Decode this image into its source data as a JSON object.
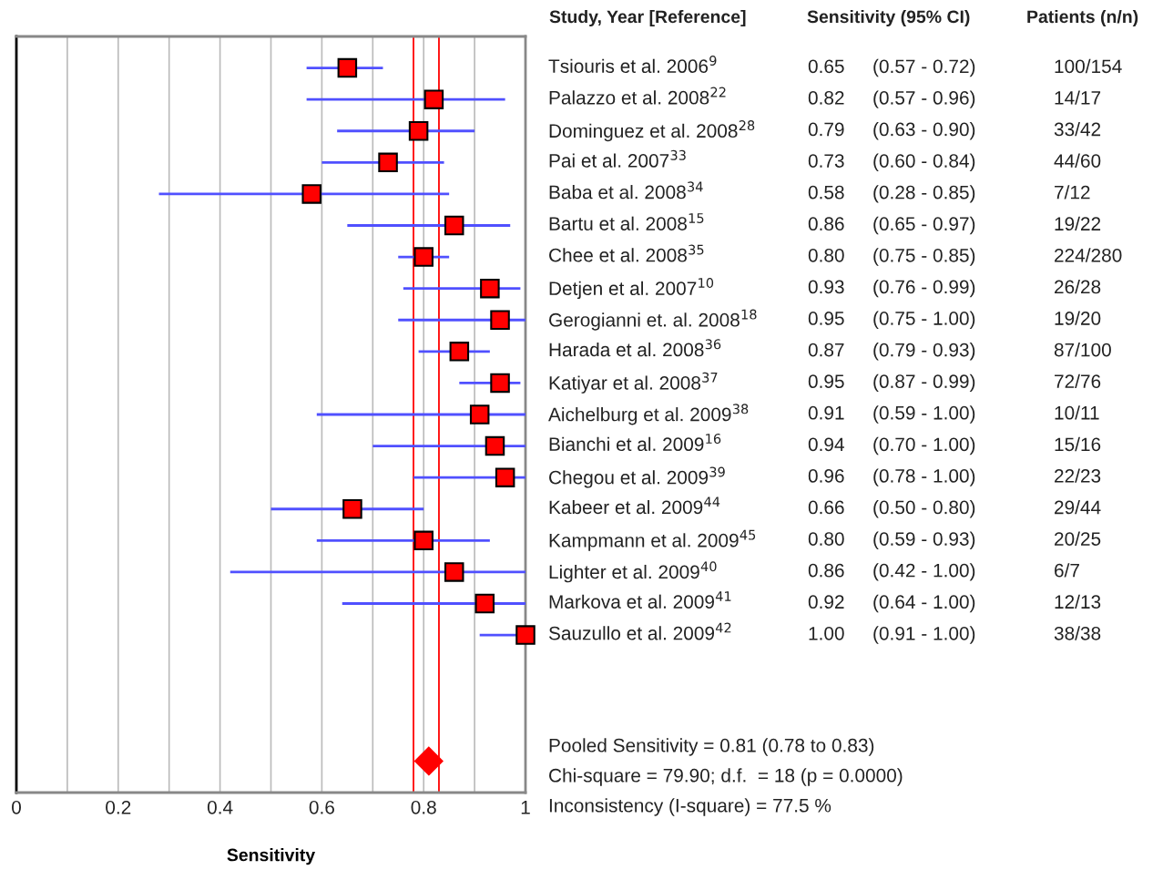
{
  "chart_data": {
    "type": "scatter",
    "orientation": "horizontal",
    "xlabel": "Sensitivity",
    "categories": [
      "Tsiouris et al. 2006$^{9}$",
      "Palazzo et al. 2008$^{22}$",
      "Dominguez et al. 2008$^{28}$",
      "Pai et al. 2007$^{33}$",
      "Baba et al. 2008$^{34}$",
      "Bartu et al. 2008$^{15}$",
      "Chee et al. 2008$^{35}$",
      "Detjen et al. 2007$^{10}$",
      "Gerogianni et. al. 2008$^{18}$",
      "Harada et al. 2008$^{36}$",
      "Katiyar et al. 2008$^{37}$",
      "Aichelburg et al. 2009$^{38}$",
      "Bianchi et al. 2009$^{16}$",
      "Chegou et al. 2009$^{39}$",
      "Kabeer et al. 2009$^{44}$",
      "Kampmann et al. 2009$^{45}$",
      "Lighter et al. 2009$^{40}$",
      "Markova et al. 2009$^{41}$",
      "Sauzullo et al. 2009$^{42}$",
      null,
      null,
      null,
      null
    ],
    "series": [
      {
        "color": "#ff0000",
        "marker": "square",
        "values": [
          0.65,
          0.82,
          0.79,
          0.73,
          0.58,
          0.86,
          0.8,
          0.93,
          0.95,
          0.87,
          0.95,
          0.91,
          0.94,
          0.96,
          0.66,
          0.8,
          0.86,
          0.92,
          1.0,
          null,
          null,
          null,
          null
        ],
        "errors": [
          [
            0.57,
            0.72
          ],
          [
            0.57,
            0.96
          ],
          [
            0.63,
            0.9
          ],
          [
            0.6,
            0.84
          ],
          [
            0.28,
            0.85
          ],
          [
            0.65,
            0.97
          ],
          [
            0.75,
            0.85
          ],
          [
            0.76,
            0.99
          ],
          [
            0.75,
            1.0
          ],
          [
            0.79,
            0.93
          ],
          [
            0.87,
            0.99
          ],
          [
            0.59,
            1.0
          ],
          [
            0.7,
            1.0
          ],
          [
            0.78,
            1.0
          ],
          [
            0.5,
            0.8
          ],
          [
            0.59,
            0.93
          ],
          [
            0.42,
            1.0
          ],
          [
            0.64,
            1.0
          ],
          [
            0.91,
            1.0
          ],
          null,
          null,
          null,
          null
        ],
        "value_labels": [
          "0.65 (0.57 - 0.72)",
          "0.82 (0.57 - 0.96)",
          "0.79 (0.63 - 0.90)",
          "0.73 (0.60 - 0.84)",
          "0.58 (0.28 - 0.85)",
          "0.86 (0.65 - 0.97)",
          "0.80 (0.75 - 0.85)",
          "0.93 (0.76 - 0.99)",
          "0.95 (0.75 - 1.00)",
          "0.87 (0.79 - 0.93)",
          "0.95 (0.87 - 0.99)",
          "0.91 (0.59 - 1.00)",
          "0.94 (0.70 - 1.00)",
          "0.96 (0.78 - 1.00)",
          "0.66 (0.50 - 0.80)",
          "0.80 (0.59 - 0.93)",
          "0.86 (0.42 - 1.00)",
          "0.92 (0.64 - 1.00)",
          "1.00 (0.91 - 1.00)",
          null,
          null,
          null,
          null
        ]
      },
      {
        "color": "#ff0000",
        "marker": "diamond",
        "values": [
          null,
          null,
          null,
          null,
          null,
          null,
          null,
          null,
          null,
          null,
          null,
          null,
          null,
          null,
          null,
          null,
          null,
          null,
          null,
          null,
          null,
          null,
          0.81
        ]
      }
    ],
    "ref_lines": [
      {
        "axis": "x",
        "value": 0.78,
        "color": "#ff0000"
      },
      {
        "axis": "x",
        "value": 0.83,
        "color": "#ff0000"
      }
    ],
    "xlim": [
      0,
      1
    ],
    "xticks": [
      0,
      {
        "value": 0.1,
        "label": null
      },
      0.2,
      {
        "value": 0.3,
        "label": null
      },
      0.4,
      {
        "value": 0.5,
        "label": null
      },
      0.6,
      {
        "value": 0.7,
        "label": null
      },
      0.8,
      {
        "value": 0.9,
        "label": null
      },
      1
    ],
    "grid": "x",
    "annotations": [
      "Study, Year [Reference]",
      "Sensitivity (95% CI)",
      "Patients (n/n)",
      "100/154",
      "14/17",
      "33/42",
      "44/60",
      "7/12",
      "19/22",
      "224/280",
      "26/28",
      "19/20",
      "87/100",
      "72/76",
      "10/11",
      "15/16",
      "22/23",
      "29/44",
      "20/25",
      "6/7",
      "12/13",
      "38/38",
      "Pooled Sensitivity = 0.81 (0.78 to 0.83)",
      "Chi-square = 79.90; d.f.  = 18 (p = 0.0000)",
      "Inconsistency (I-square) = 77.5 %"
    ]
  }
}
